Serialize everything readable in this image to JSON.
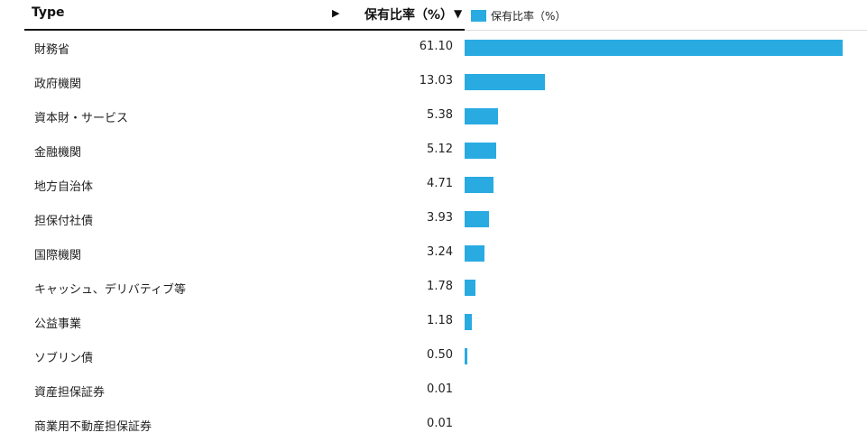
{
  "header": {
    "type_label": "Type",
    "sort_arrow": "▶",
    "value_label": "保有比率（%）",
    "sort_down": "▼"
  },
  "legend": {
    "label": "保有比率（%）",
    "color": "#29abe2"
  },
  "chart_data": {
    "type": "bar",
    "orientation": "horizontal",
    "title": "",
    "xlabel": "",
    "ylabel": "",
    "xlim": [
      0,
      61.1
    ],
    "grid": false,
    "legend": "top-right",
    "color": "#29abe2",
    "categories": [
      "財務省",
      "政府機関",
      "資本財・サービス",
      "金融機関",
      "地方自治体",
      "担保付社債",
      "国際機関",
      "キャッシュ、デリバティブ等",
      "公益事業",
      "ソブリン債",
      "資産担保証券",
      "商業用不動産担保証券"
    ],
    "value_labels": [
      "61.10",
      "13.03",
      "5.38",
      "5.12",
      "4.71",
      "3.93",
      "3.24",
      "1.78",
      "1.18",
      "0.50",
      "0.01",
      "0.01"
    ],
    "series": [
      {
        "name": "保有比率（%）",
        "values": [
          61.1,
          13.03,
          5.38,
          5.12,
          4.71,
          3.93,
          3.24,
          1.78,
          1.18,
          0.5,
          0.01,
          0.01
        ]
      }
    ]
  }
}
